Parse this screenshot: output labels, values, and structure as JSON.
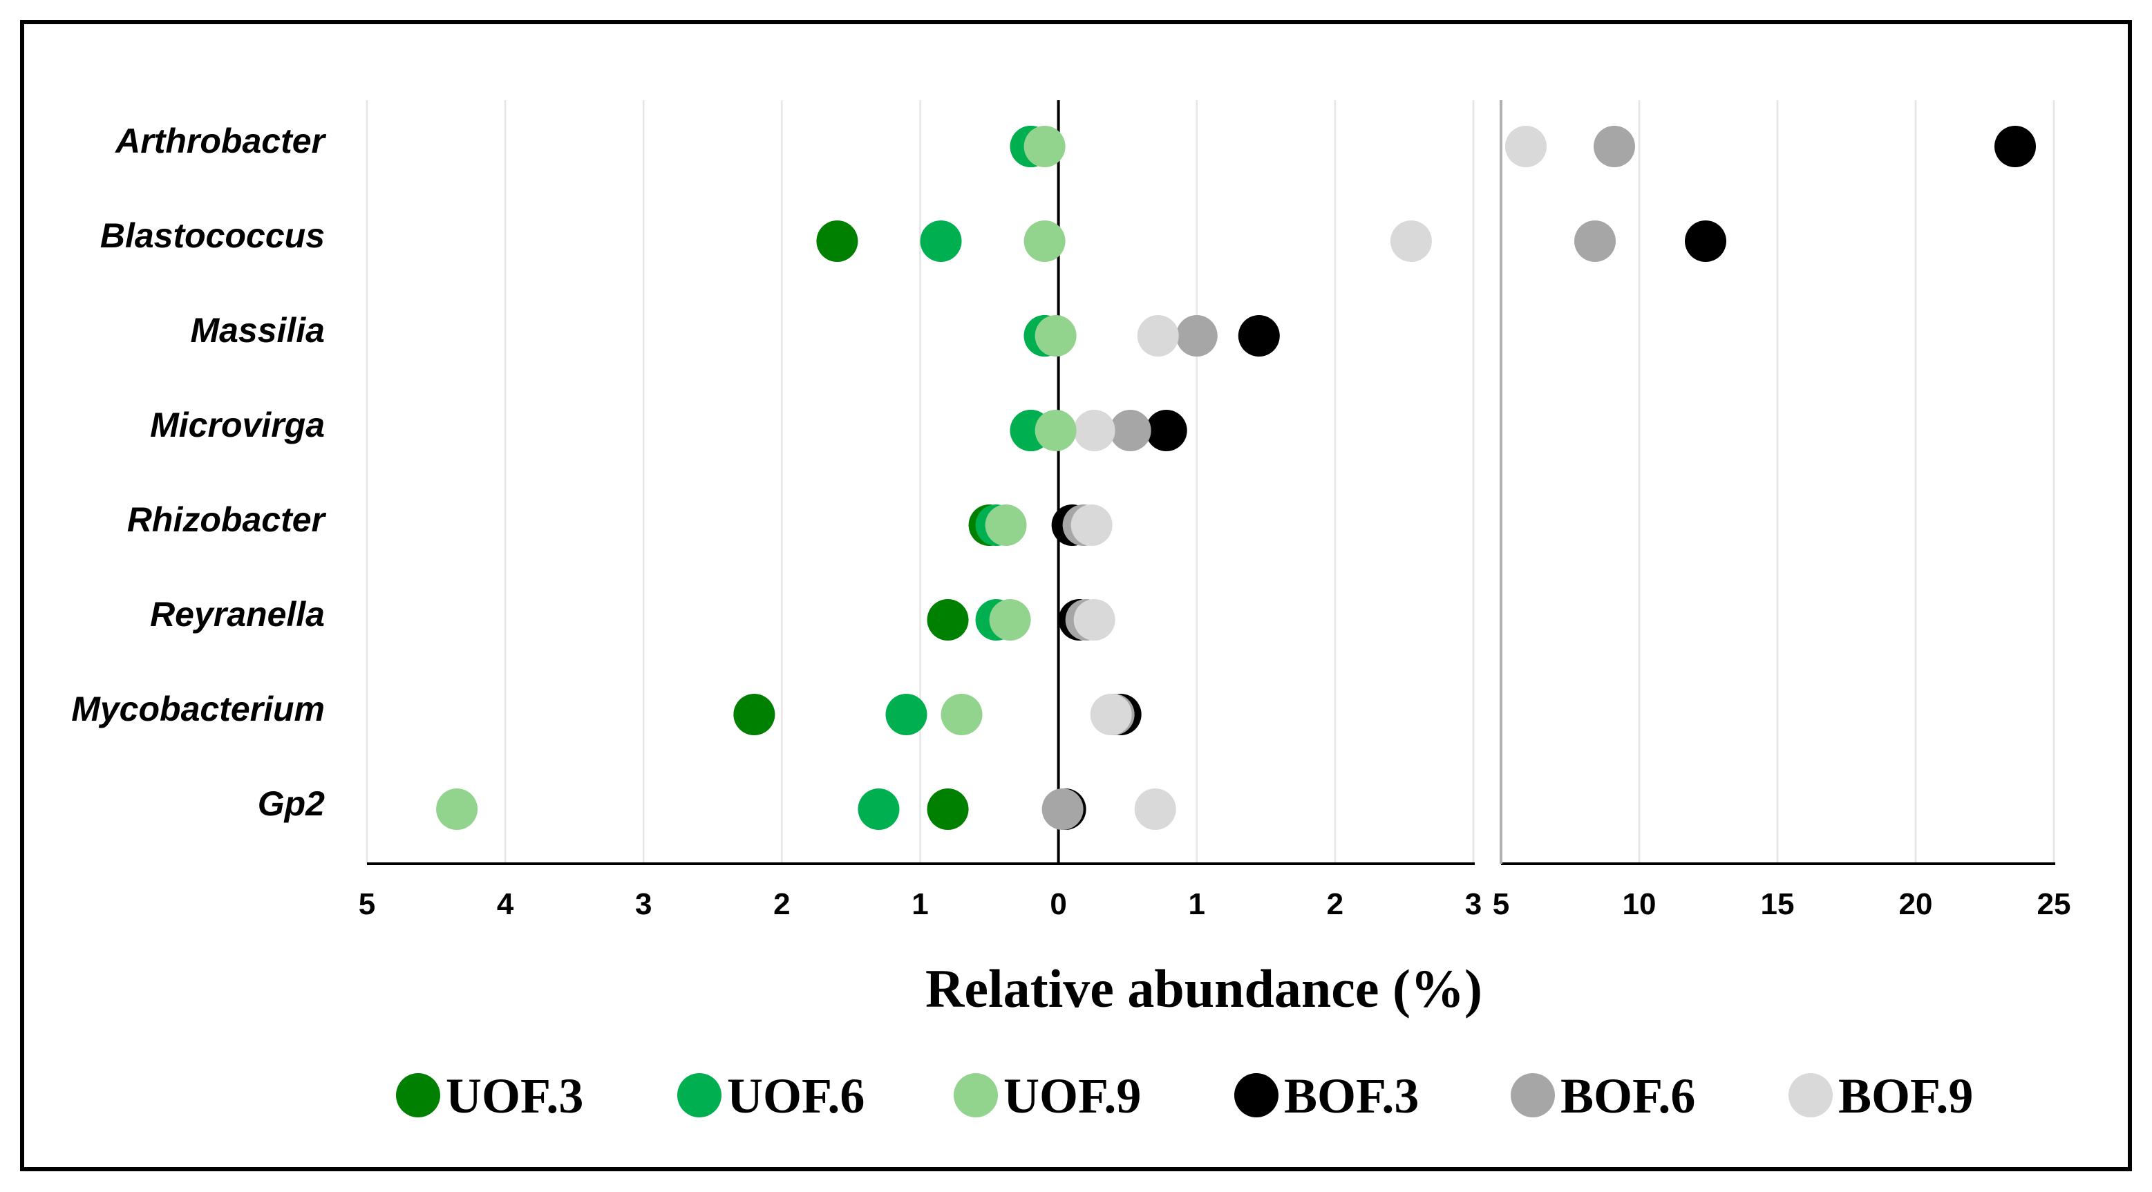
{
  "chart_data": {
    "type": "scatter",
    "xlabel": "Relative abundance (%)",
    "categories": [
      "Arthrobacter",
      "Blastococcus",
      "Massilia",
      "Microvirga",
      "Rhizobacter",
      "Reyranella",
      "Mycobacterium",
      "Gp2"
    ],
    "left_axis": {
      "range": [
        -5,
        3
      ],
      "ticks": [
        -5,
        -4,
        -3,
        -2,
        -1,
        0,
        1,
        2,
        3
      ],
      "tick_labels": [
        "5",
        "4",
        "3",
        "2",
        "1",
        "0",
        "1",
        "2",
        "3"
      ]
    },
    "right_axis": {
      "range": [
        5,
        25
      ],
      "ticks": [
        5,
        10,
        15,
        20,
        25
      ],
      "tick_labels": [
        "5",
        "10",
        "15",
        "20",
        "25"
      ]
    },
    "series": [
      {
        "name": "UOF.3",
        "color": "#008000",
        "values": [
          -0.2,
          -1.6,
          -0.1,
          -0.2,
          -0.5,
          -0.8,
          -2.2,
          -0.8
        ]
      },
      {
        "name": "UOF.6",
        "color": "#00b050",
        "values": [
          -0.2,
          -0.85,
          -0.1,
          -0.2,
          -0.45,
          -0.45,
          -1.1,
          -1.3
        ]
      },
      {
        "name": "UOF.9",
        "color": "#92d38e",
        "values": [
          -0.1,
          -0.1,
          -0.02,
          -0.02,
          -0.38,
          -0.35,
          -0.7,
          -4.35
        ]
      },
      {
        "name": "BOF.3",
        "color": "#000000",
        "values": [
          23.6,
          12.4,
          1.45,
          0.78,
          0.1,
          0.15,
          0.45,
          0.05
        ]
      },
      {
        "name": "BOF.6",
        "color": "#a6a6a6",
        "values": [
          9.1,
          8.4,
          1.0,
          0.52,
          0.18,
          0.2,
          0.4,
          0.03
        ]
      },
      {
        "name": "BOF.9",
        "color": "#d9d9d9",
        "values": [
          5.9,
          2.55,
          0.72,
          0.26,
          0.24,
          0.26,
          0.38,
          0.7
        ]
      }
    ]
  },
  "legend": [
    {
      "label": "UOF.3",
      "color": "#008000"
    },
    {
      "label": "UOF.6",
      "color": "#00b050"
    },
    {
      "label": "UOF.9",
      "color": "#92d38e"
    },
    {
      "label": "BOF.3",
      "color": "#000000"
    },
    {
      "label": "BOF.6",
      "color": "#a6a6a6"
    },
    {
      "label": "BOF.9",
      "color": "#d9d9d9"
    }
  ]
}
